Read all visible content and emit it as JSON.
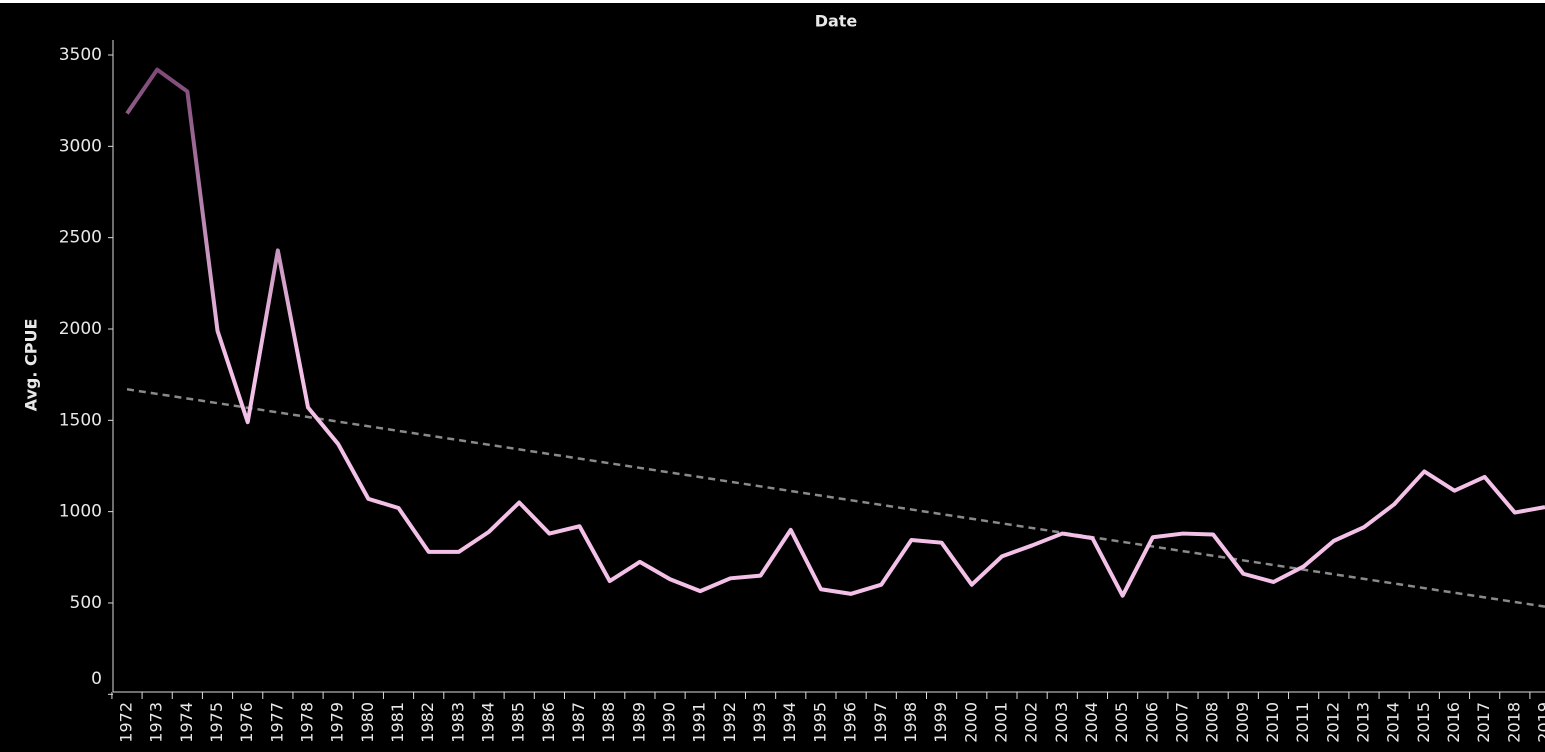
{
  "chart_data": {
    "type": "line",
    "title": "Date",
    "y_label": "Avg. CPUE",
    "categories": [
      "1972",
      "1973",
      "1974",
      "1975",
      "1976",
      "1977",
      "1978",
      "1979",
      "1980",
      "1981",
      "1982",
      "1983",
      "1984",
      "1985",
      "1986",
      "1987",
      "1988",
      "1989",
      "1990",
      "1991",
      "1992",
      "1993",
      "1994",
      "1995",
      "1996",
      "1997",
      "1998",
      "1999",
      "2000",
      "2001",
      "2002",
      "2003",
      "2004",
      "2005",
      "2006",
      "2007",
      "2008",
      "2009",
      "2010",
      "2011",
      "2012",
      "2013",
      "2014",
      "2015",
      "2016",
      "2017",
      "2018",
      "2019"
    ],
    "series": [
      {
        "name": "Avg. CPUE",
        "color_scale": [
          "#7d4a77",
          "#f3c1e8"
        ],
        "values": [
          3180,
          3420,
          3300,
          1990,
          1490,
          2430,
          1570,
          1370,
          1070,
          1020,
          780,
          780,
          890,
          1050,
          880,
          920,
          620,
          725,
          630,
          565,
          635,
          650,
          900,
          575,
          550,
          600,
          845,
          830,
          600,
          755,
          815,
          880,
          855,
          540,
          860,
          880,
          875,
          660,
          615,
          700,
          840,
          915,
          1040,
          1220,
          1115,
          1190,
          995,
          1025
        ]
      }
    ],
    "trend": {
      "values": [
        1670,
        480
      ],
      "color": "#8a8a8a"
    },
    "ylim": [
      0,
      3500
    ],
    "yticks": [
      0,
      500,
      1000,
      1500,
      2000,
      2500,
      3000,
      3500
    ]
  }
}
